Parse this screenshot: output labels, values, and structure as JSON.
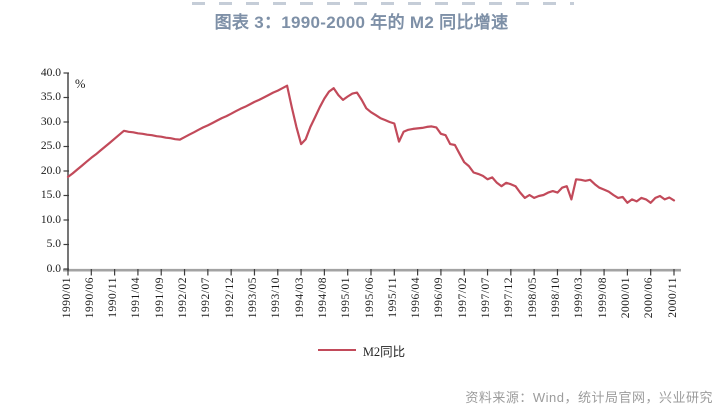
{
  "header": {
    "title": "图表 3：1990-2000 年的 M2 同比增速"
  },
  "legend": {
    "label": "M2同比"
  },
  "footer": {
    "source": "资料来源：Wind，统计局官网，兴业研究"
  },
  "colors": {
    "line": "#c24a5a",
    "title": "#7e90a7",
    "source_text": "#9c9c9c",
    "axis": "#3d3d3d",
    "x_axis_base": "#a3a3a3"
  },
  "chart_data": {
    "type": "line",
    "title": "图表 3：1990-2000 年的 M2 同比增速",
    "xlabel": "",
    "ylabel": "%",
    "unit_label": "%",
    "ylim": [
      0,
      40
    ],
    "y_tick_step": 5,
    "y_tick_labels": [
      "0.0",
      "5.0",
      "10.0",
      "15.0",
      "20.0",
      "25.0",
      "30.0",
      "35.0",
      "40.0"
    ],
    "x_frequency": "monthly",
    "x_start": "1990/01",
    "x_end": "2000/11",
    "x_tick_labels": [
      "1990/01",
      "1990/06",
      "1990/11",
      "1991/04",
      "1991/09",
      "1992/02",
      "1992/07",
      "1992/12",
      "1993/05",
      "1993/10",
      "1994/03",
      "1994/08",
      "1995/01",
      "1995/06",
      "1995/11",
      "1996/04",
      "1996/09",
      "1997/02",
      "1997/07",
      "1997/12",
      "1998/05",
      "1998/10",
      "1999/03",
      "1999/08",
      "2000/01",
      "2000/06",
      "2000/11"
    ],
    "grid": false,
    "legend_position": "bottom",
    "series": [
      {
        "name": "M2同比",
        "values": [
          18.8,
          19.5,
          20.3,
          21.1,
          21.9,
          22.7,
          23.4,
          24.2,
          25.0,
          25.8,
          26.6,
          27.4,
          28.2,
          28.0,
          27.9,
          27.7,
          27.6,
          27.4,
          27.3,
          27.1,
          27.0,
          26.8,
          26.7,
          26.5,
          26.4,
          26.9,
          27.4,
          27.9,
          28.4,
          28.9,
          29.3,
          29.8,
          30.3,
          30.8,
          31.2,
          31.7,
          32.2,
          32.7,
          33.1,
          33.6,
          34.1,
          34.5,
          35.0,
          35.5,
          36.0,
          36.4,
          36.9,
          37.4,
          33.0,
          29.0,
          25.5,
          26.5,
          29.0,
          31.0,
          33.0,
          34.8,
          36.2,
          36.9,
          35.5,
          34.5,
          35.2,
          35.8,
          36.0,
          34.5,
          32.8,
          32.0,
          31.4,
          30.8,
          30.4,
          30.0,
          29.7,
          26.0,
          28.0,
          28.4,
          28.6,
          28.7,
          28.8,
          29.0,
          29.1,
          28.9,
          27.6,
          27.3,
          25.5,
          25.3,
          23.5,
          21.8,
          21.0,
          19.7,
          19.4,
          19.0,
          18.3,
          18.7,
          17.6,
          16.9,
          17.6,
          17.3,
          16.9,
          15.6,
          14.5,
          15.1,
          14.5,
          14.9,
          15.1,
          15.6,
          15.9,
          15.6,
          16.6,
          16.9,
          14.2,
          18.3,
          18.2,
          18.0,
          18.2,
          17.3,
          16.6,
          16.2,
          15.8,
          15.1,
          14.5,
          14.7,
          13.5,
          14.2,
          13.8,
          14.5,
          14.2,
          13.5,
          14.5,
          14.9,
          14.2,
          14.6,
          14.0
        ]
      }
    ]
  }
}
